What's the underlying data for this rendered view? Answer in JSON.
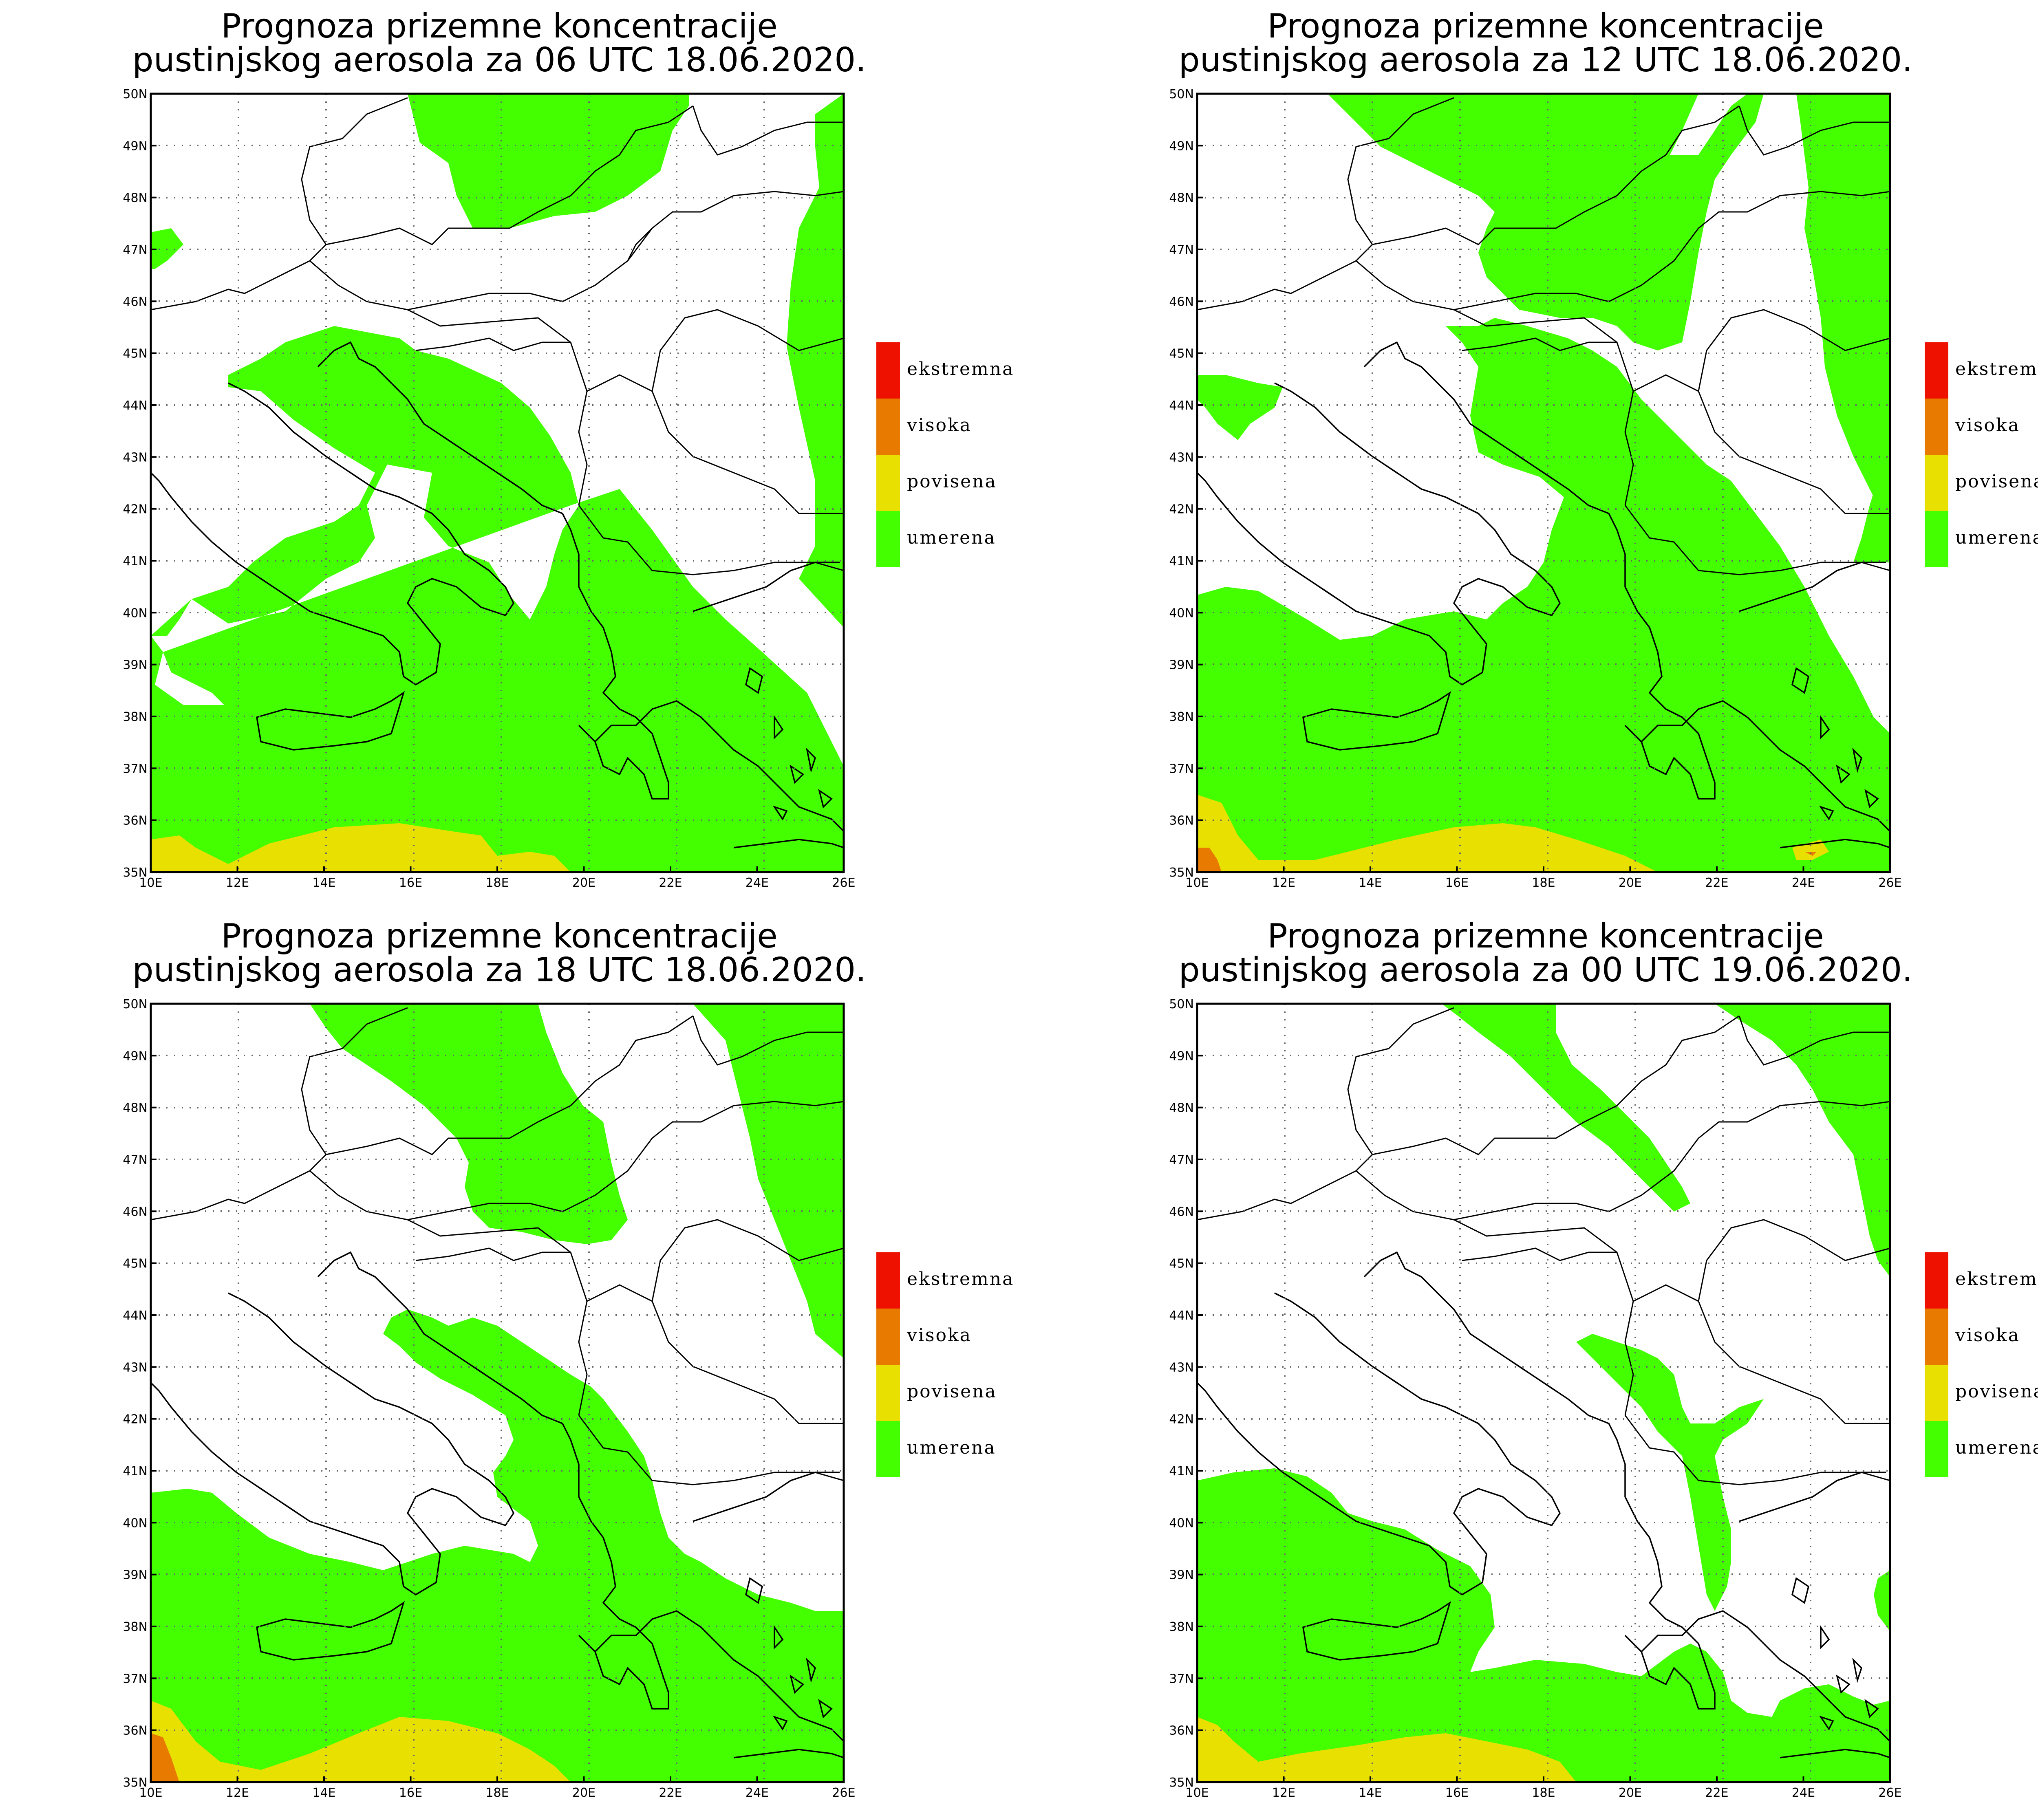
{
  "palette": {
    "umerena": "#44ff00",
    "povisena": "#e8e000",
    "visoka": "#e87a00",
    "ekstremna": "#ee1100"
  },
  "lon_ticks": [
    "10E",
    "12E",
    "14E",
    "16E",
    "18E",
    "20E",
    "22E",
    "24E",
    "26E"
  ],
  "lat_ticks": [
    "35N",
    "36N",
    "37N",
    "38N",
    "39N",
    "40N",
    "41N",
    "42N",
    "43N",
    "44N",
    "45N",
    "46N",
    "47N",
    "48N",
    "49N",
    "50N"
  ],
  "legend": [
    {
      "label": "ekstremna",
      "level": "ekstremna"
    },
    {
      "label": "visoka",
      "level": "visoka"
    },
    {
      "label": "povisena",
      "level": "povisena"
    },
    {
      "label": "umerena",
      "level": "umerena"
    }
  ],
  "panels": [
    {
      "title_line1": "Prognoza prizemne koncentracije",
      "title_line2": "pustinjskog aerosola za 06 UTC 18.06.2020."
    },
    {
      "title_line1": "Prognoza prizemne koncentracije",
      "title_line2": "pustinjskog aerosola za 12 UTC 18.06.2020."
    },
    {
      "title_line1": "Prognoza prizemne koncentracije",
      "title_line2": "pustinjskog aerosola za 18 UTC 18.06.2020."
    },
    {
      "title_line1": "Prognoza prizemne koncentracije",
      "title_line2": "pustinjskog aerosola za 00 UTC 19.06.2020."
    }
  ]
}
